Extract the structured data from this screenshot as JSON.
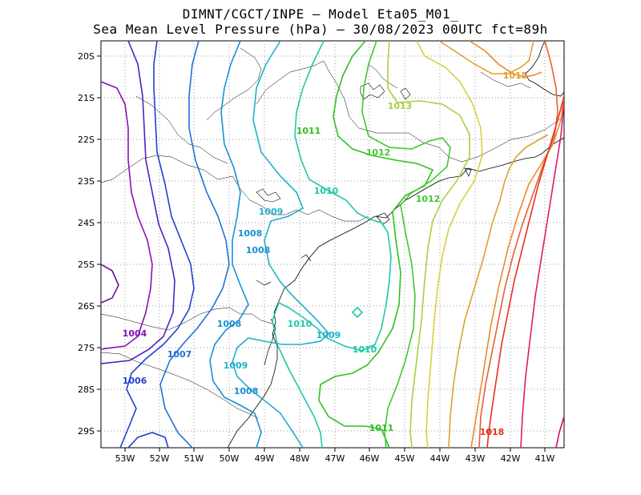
{
  "header": {
    "line1": "DIMNT/CGCT/INPE –  Model Eta05_M01_",
    "line2": "Sea Mean Level Pressure (hPa) – 30/08/2023 00UTC fct=89h"
  },
  "map": {
    "lon_labels": [
      "53W",
      "52W",
      "51W",
      "50W",
      "49W",
      "48W",
      "47W",
      "46W",
      "45W",
      "44W",
      "43W",
      "42W",
      "41W"
    ],
    "lat_labels": [
      "20S",
      "21S",
      "22S",
      "23S",
      "24S",
      "25S",
      "26S",
      "27S",
      "28S",
      "29S"
    ],
    "lon_range": [
      -53.6,
      -40.5
    ],
    "lat_range": [
      -29.4,
      -19.6
    ],
    "grid": "dotted"
  },
  "contour_labels": [
    {
      "text": "1015",
      "color": "#e0a030"
    },
    {
      "text": "1013",
      "color": "#a8d040"
    },
    {
      "text": "1011",
      "color": "#30c020"
    },
    {
      "text": "1012",
      "color": "#40c830"
    },
    {
      "text": "1010",
      "color": "#20c8a8"
    },
    {
      "text": "1012",
      "color": "#40c830"
    },
    {
      "text": "1009",
      "color": "#20b0c8"
    },
    {
      "text": "1008",
      "color": "#1890d8"
    },
    {
      "text": "1008",
      "color": "#1890d8"
    },
    {
      "text": "1004",
      "color": "#8010b0"
    },
    {
      "text": "1008",
      "color": "#1890d8"
    },
    {
      "text": "1010",
      "color": "#20c8a8"
    },
    {
      "text": "1009",
      "color": "#20b0c8"
    },
    {
      "text": "1010",
      "color": "#20c8a8"
    },
    {
      "text": "1007",
      "color": "#2070d8"
    },
    {
      "text": "1009",
      "color": "#20b0c8"
    },
    {
      "text": "1006",
      "color": "#2040d0"
    },
    {
      "text": "1008",
      "color": "#1890d8"
    },
    {
      "text": "1011",
      "color": "#30c020"
    },
    {
      "text": "1018",
      "color": "#e83020"
    }
  ]
}
